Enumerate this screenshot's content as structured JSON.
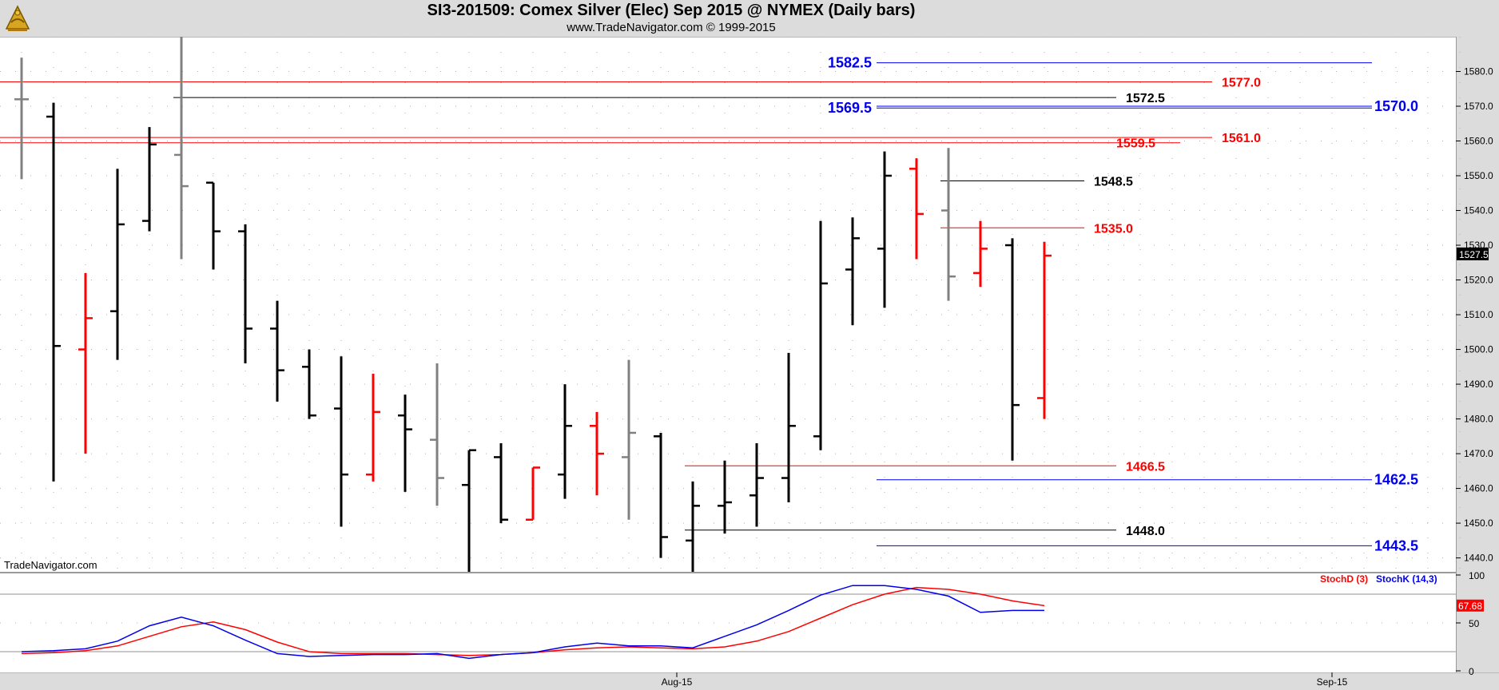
{
  "header": {
    "title": "SI3-201509:  Comex Silver (Elec) Sep 2015 @ NYMEX  (Daily bars)",
    "subtitle": "www.TradeNavigator.com © 1999-2015",
    "logo_icon": "sextant-logo-icon"
  },
  "watermark": "TradeNavigator.com",
  "chart_data": [
    {
      "type": "ohlc",
      "title": "SI3-201509:  Comex Silver (Elec) Sep 2015 @ NYMEX  (Daily bars)",
      "ylim": [
        1436,
        1590
      ],
      "y_ticks": [
        "1440.0",
        "1450.0",
        "1460.0",
        "1470.0",
        "1480.0",
        "1490.0",
        "1500.0",
        "1510.0",
        "1520.0",
        "1530.0",
        "1540.0",
        "1550.0",
        "1560.0",
        "1570.0",
        "1580.0"
      ],
      "x_tick_labels": [
        {
          "index": 20.5,
          "label": "Aug-15"
        },
        {
          "index": 41,
          "label": "Sep-15"
        }
      ],
      "last_price_label": "1527.5",
      "colors": {
        "up": "#000000",
        "down": "#ff0000",
        "neutral": "#808080",
        "blue_level": "#0000ee",
        "red_level": "#ff0000",
        "black_level": "#000000"
      },
      "bars": [
        {
          "o": 1572,
          "h": 1584,
          "l": 1549,
          "c": 1572,
          "color": "neutral"
        },
        {
          "o": 1567,
          "h": 1571,
          "l": 1462,
          "c": 1501,
          "color": "up"
        },
        {
          "o": 1500,
          "h": 1522,
          "l": 1470,
          "c": 1509,
          "color": "down"
        },
        {
          "o": 1511,
          "h": 1552,
          "l": 1497,
          "c": 1536,
          "color": "up"
        },
        {
          "o": 1537,
          "h": 1564,
          "l": 1534,
          "c": 1559,
          "color": "up"
        },
        {
          "o": 1556,
          "h": 1590,
          "l": 1526,
          "c": 1547,
          "color": "neutral"
        },
        {
          "o": 1548,
          "h": 1548,
          "l": 1523,
          "c": 1534,
          "color": "up"
        },
        {
          "o": 1534,
          "h": 1536,
          "l": 1496,
          "c": 1506,
          "color": "up"
        },
        {
          "o": 1506,
          "h": 1514,
          "l": 1485,
          "c": 1494,
          "color": "up"
        },
        {
          "o": 1495,
          "h": 1500,
          "l": 1480,
          "c": 1481,
          "color": "up"
        },
        {
          "o": 1483,
          "h": 1498,
          "l": 1449,
          "c": 1464,
          "color": "up"
        },
        {
          "o": 1464,
          "h": 1493,
          "l": 1462,
          "c": 1482,
          "color": "down"
        },
        {
          "o": 1481,
          "h": 1487,
          "l": 1459,
          "c": 1477,
          "color": "up"
        },
        {
          "o": 1474,
          "h": 1496,
          "l": 1455,
          "c": 1463,
          "color": "neutral"
        },
        {
          "o": 1461,
          "h": 1471,
          "l": 1436,
          "c": 1471,
          "color": "up"
        },
        {
          "o": 1469,
          "h": 1473,
          "l": 1450,
          "c": 1451,
          "color": "up"
        },
        {
          "o": 1451,
          "h": 1466,
          "l": 1451,
          "c": 1466,
          "color": "down"
        },
        {
          "o": 1464,
          "h": 1490,
          "l": 1457,
          "c": 1478,
          "color": "up"
        },
        {
          "o": 1478,
          "h": 1482,
          "l": 1458,
          "c": 1470,
          "color": "down"
        },
        {
          "o": 1469,
          "h": 1497,
          "l": 1451,
          "c": 1476,
          "color": "neutral"
        },
        {
          "o": 1475,
          "h": 1476,
          "l": 1440,
          "c": 1446,
          "color": "up"
        },
        {
          "o": 1445,
          "h": 1462,
          "l": 1436,
          "c": 1455,
          "color": "up"
        },
        {
          "o": 1455,
          "h": 1468,
          "l": 1447,
          "c": 1456,
          "color": "up"
        },
        {
          "o": 1458,
          "h": 1473,
          "l": 1449,
          "c": 1463,
          "color": "up"
        },
        {
          "o": 1463,
          "h": 1499,
          "l": 1456,
          "c": 1478,
          "color": "up"
        },
        {
          "o": 1475,
          "h": 1537,
          "l": 1471,
          "c": 1519,
          "color": "up"
        },
        {
          "o": 1523,
          "h": 1538,
          "l": 1507,
          "c": 1532,
          "color": "up"
        },
        {
          "o": 1529,
          "h": 1557,
          "l": 1512,
          "c": 1550,
          "color": "up"
        },
        {
          "o": 1552,
          "h": 1555,
          "l": 1526,
          "c": 1539,
          "color": "down"
        },
        {
          "o": 1540,
          "h": 1558,
          "l": 1514,
          "c": 1521,
          "color": "neutral"
        },
        {
          "o": 1522,
          "h": 1537,
          "l": 1518,
          "c": 1529,
          "color": "down"
        },
        {
          "o": 1530,
          "h": 1532,
          "l": 1468,
          "c": 1484,
          "color": "up"
        },
        {
          "o": 1486,
          "h": 1531,
          "l": 1480,
          "c": 1527,
          "color": "down"
        }
      ],
      "levels": [
        {
          "value": 1582.5,
          "label": "1582.5",
          "color": "blue_level",
          "from": 27,
          "to": 42,
          "label_pos": "left",
          "bold": true
        },
        {
          "value": 1577.0,
          "label": "1577.0",
          "color": "red_level",
          "from": -1,
          "to": 37,
          "label_pos": "right"
        },
        {
          "value": 1572.5,
          "label": "1572.5",
          "color": "black_level",
          "from": 5,
          "to": 34,
          "label_pos": "right"
        },
        {
          "value": 1569.5,
          "label": "1569.5",
          "color": "blue_level",
          "from": 27,
          "to": 42,
          "label_pos": "left",
          "bold": true
        },
        {
          "value": 1570.0,
          "label": "1570.0",
          "color": "blue_level",
          "from": 27,
          "to": 42,
          "label_pos": "far-right",
          "bold": true
        },
        {
          "value": 1561.0,
          "label": "1561.0",
          "color": "red_level",
          "from": -1,
          "to": 37,
          "label_pos": "right"
        },
        {
          "value": 1559.5,
          "label": "1559.5",
          "color": "red_level",
          "from": -1,
          "to": 36,
          "label_pos": "inline"
        },
        {
          "value": 1548.5,
          "label": "1548.5",
          "color": "black_level",
          "from": 29,
          "to": 33,
          "label_pos": "right"
        },
        {
          "value": 1535.0,
          "label": "1535.0",
          "color": "red_level",
          "from": 29,
          "to": 33,
          "label_pos": "right"
        },
        {
          "value": 1466.5,
          "label": "1466.5",
          "color": "red_level",
          "from": 21,
          "to": 34,
          "label_pos": "right"
        },
        {
          "value": 1462.5,
          "label": "1462.5",
          "color": "blue_level",
          "from": 27,
          "to": 42,
          "label_pos": "far-right",
          "bold": true
        },
        {
          "value": 1448.0,
          "label": "1448.0",
          "color": "black_level",
          "from": 21,
          "to": 34,
          "label_pos": "right"
        },
        {
          "value": 1443.5,
          "label": "1443.5",
          "color": "blue_level",
          "from": 27,
          "to": 42,
          "label_pos": "far-right",
          "bold": true
        }
      ]
    },
    {
      "type": "line",
      "title": "",
      "ylim": [
        0,
        100
      ],
      "y_ticks": [
        "0",
        "50",
        "100"
      ],
      "reference_lines": [
        20,
        80
      ],
      "legend": [
        "StochD (3)",
        "StochK (14,3)"
      ],
      "last_value_label": "67.68",
      "series": [
        {
          "name": "StochD (3)",
          "color": "#ff0000",
          "values": [
            18,
            19,
            21,
            26,
            36,
            46,
            51,
            43,
            30,
            20,
            18,
            18,
            18,
            17,
            16,
            17,
            19,
            22,
            24,
            25,
            24,
            23,
            25,
            31,
            41,
            55,
            69,
            80,
            87,
            85,
            80,
            73,
            68
          ]
        },
        {
          "name": "StochK (14,3)",
          "color": "#0000ee",
          "values": [
            20,
            21,
            23,
            31,
            47,
            56,
            47,
            32,
            18,
            15,
            16,
            17,
            17,
            18,
            13,
            17,
            19,
            25,
            29,
            26,
            26,
            24,
            36,
            48,
            63,
            79,
            89,
            89,
            85,
            78,
            61,
            63,
            63
          ]
        }
      ]
    }
  ]
}
